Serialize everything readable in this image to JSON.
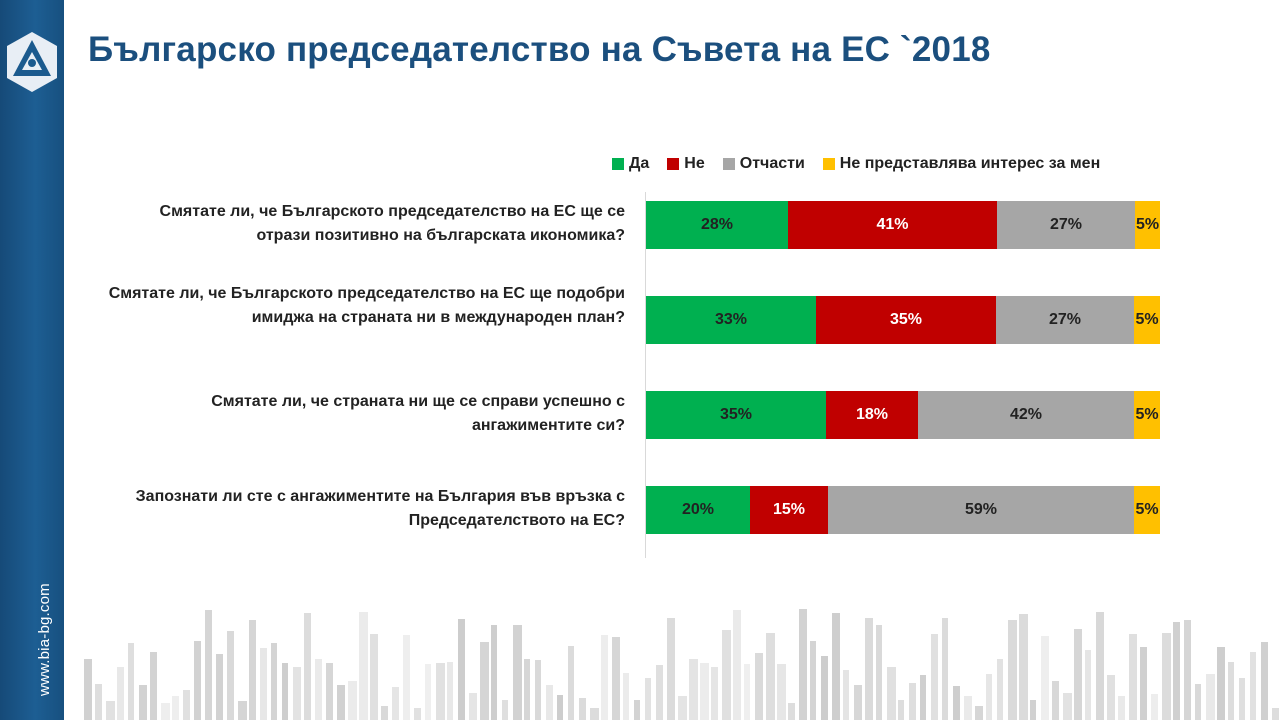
{
  "header": {
    "title": "Българско председателство на Съвета на ЕС `2018"
  },
  "sidebar": {
    "url": "www.bia-bg.com",
    "logo_icon": "bia-triangle-logo-icon"
  },
  "colors": {
    "sidebar": "#1b5a8e",
    "title": "#1b4f7e",
    "yes": "#00b050",
    "no": "#c00000",
    "partly": "#a6a6a6",
    "not_interested": "#ffc000"
  },
  "chart_data": {
    "type": "bar",
    "orientation": "horizontal",
    "stacked": true,
    "legend_position": "top-right",
    "grid": false,
    "xlim": [
      0,
      100
    ],
    "categories": [
      "Смятате ли, че Българското председателство на ЕС ще се отрази позитивно на българската икономика?",
      "Смятате ли, че Българското председателство на ЕС ще подобри имиджа на страната ни в международен план?",
      "Смятате ли, че страната ни ще се справи успешно с ангажиментите си?",
      "Запознати ли сте с ангажиментите на България във връзка с Председателството на ЕС?"
    ],
    "series": [
      {
        "name": "Да",
        "color": "#00b050",
        "text_color": "#222222",
        "values": [
          28,
          33,
          35,
          20
        ],
        "labels": [
          "28%",
          "33%",
          "35%",
          "20%"
        ]
      },
      {
        "name": "Не",
        "color": "#c00000",
        "text_color": "#ffffff",
        "values": [
          41,
          35,
          18,
          15
        ],
        "labels": [
          "41%",
          "35%",
          "18%",
          "15%"
        ]
      },
      {
        "name": "Отчасти",
        "color": "#a6a6a6",
        "text_color": "#222222",
        "values": [
          27,
          27,
          42,
          59
        ],
        "labels": [
          "27%",
          "27%",
          "42%",
          "59%"
        ]
      },
      {
        "name": "Не представлява интерес за мен",
        "color": "#ffc000",
        "text_color": "#222222",
        "values": [
          5,
          5,
          5,
          5
        ],
        "labels": [
          "5%",
          "5%",
          "5%",
          "5%"
        ]
      }
    ]
  }
}
